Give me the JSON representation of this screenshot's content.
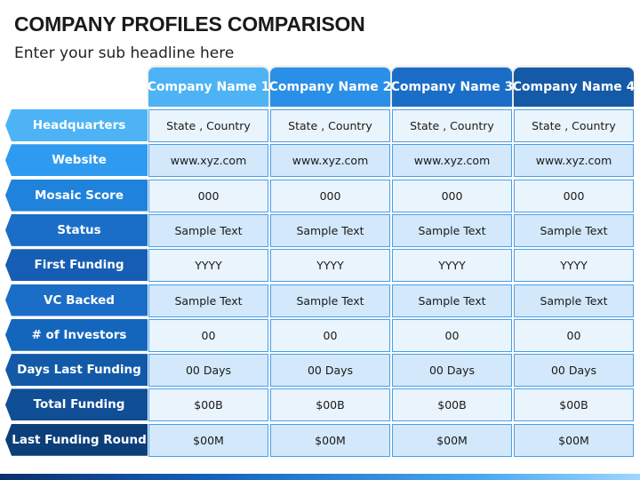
{
  "slide": {
    "title": "COMPANY PROFILES COMPARISON",
    "subtitle": "Enter your sub headline here"
  },
  "colors": {
    "header1": "#4db3f5",
    "header2": "#2a8fe6",
    "header3": "#1a6ec7",
    "header4": "#155aa6",
    "label_gradient": [
      "#4db3f5",
      "#2f9bf0",
      "#1f82db",
      "#1a6ec7",
      "#165eb3",
      "#1a6ec7",
      "#1466bd",
      "#125aa8",
      "#104e96",
      "#0c3f7a"
    ],
    "cell_border": "#4a9fe8",
    "cell_fill_light": "#eaf4fd",
    "cell_fill_mid": "#d3e8fb"
  },
  "table": {
    "columns": [
      "Company Name 1",
      "Company Name 2",
      "Company Name 3",
      "Company Name 4"
    ],
    "rows": [
      {
        "label": "Headquarters",
        "values": [
          "State , Country",
          "State , Country",
          "State , Country",
          "State , Country"
        ]
      },
      {
        "label": "Website",
        "values": [
          "www.xyz.com",
          "www.xyz.com",
          "www.xyz.com",
          "www.xyz.com"
        ]
      },
      {
        "label": "Mosaic Score",
        "values": [
          "000",
          "000",
          "000",
          "000"
        ]
      },
      {
        "label": "Status",
        "values": [
          "Sample Text",
          "Sample Text",
          "Sample Text",
          "Sample Text"
        ]
      },
      {
        "label": "First Funding",
        "values": [
          "YYYY",
          "YYYY",
          "YYYY",
          "YYYY"
        ]
      },
      {
        "label": "VC Backed",
        "values": [
          "Sample Text",
          "Sample Text",
          "Sample Text",
          "Sample Text"
        ]
      },
      {
        "label": "# of Investors",
        "values": [
          "00",
          "00",
          "00",
          "00"
        ]
      },
      {
        "label": "Days Last Funding",
        "values": [
          "00 Days",
          "00 Days",
          "00 Days",
          "00 Days"
        ]
      },
      {
        "label": "Total Funding",
        "values": [
          "$00B",
          "$00B",
          "$00B",
          "$00B"
        ]
      },
      {
        "label": "Last Funding Round",
        "values": [
          "$00M",
          "$00M",
          "$00M",
          "$00M"
        ]
      }
    ]
  }
}
